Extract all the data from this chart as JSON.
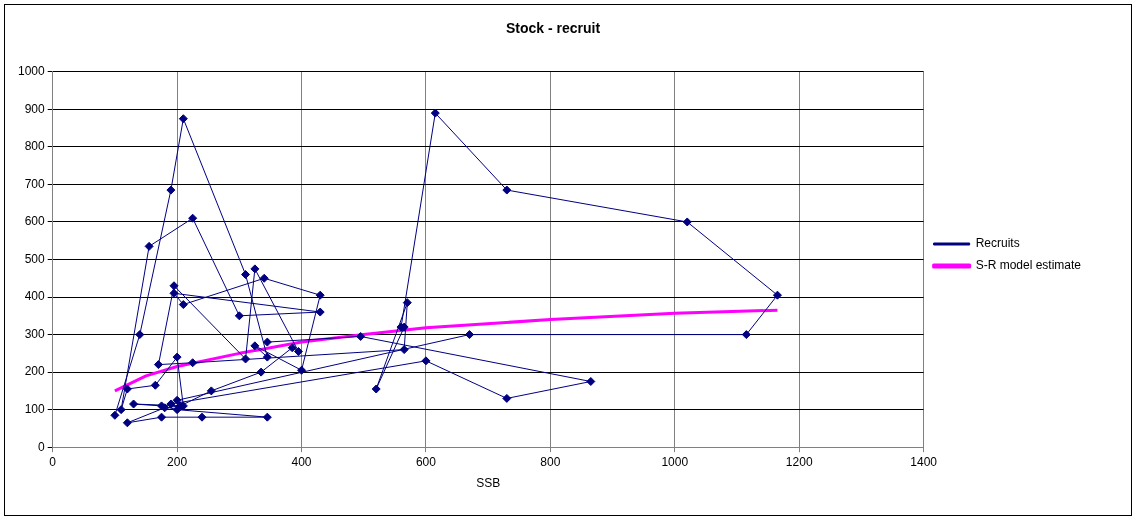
{
  "chart_data": {
    "type": "line",
    "title": "Stock - recruit",
    "xlabel": "SSB",
    "xlim": [
      0,
      1400
    ],
    "xticks": [
      0,
      200,
      400,
      600,
      800,
      1000,
      1200,
      1400
    ],
    "ylim": [
      0,
      1000
    ],
    "yticks": [
      0,
      100,
      200,
      300,
      400,
      500,
      600,
      700,
      800,
      900,
      1000
    ],
    "grid": true,
    "legend": "right",
    "series": [
      {
        "name": "Recruits",
        "color": "#000080",
        "marker": "diamond",
        "line_style": "solid",
        "x": [
          100,
          140,
          190,
          210,
          310,
          345,
          325,
          400,
          430,
          340,
          210,
          195,
          430,
          300,
          225,
          155,
          110,
          120,
          165,
          200,
          210,
          130,
          175,
          200,
          345,
          240,
          175,
          120,
          180,
          205,
          255,
          335,
          385,
          395,
          325,
          310,
          195,
          170,
          225,
          565,
          570,
          520,
          565,
          560,
          615,
          730,
          1020,
          1165,
          1115,
          670,
          200,
          190,
          600,
          730,
          865,
          495,
          345
        ],
        "values": [
          85,
          300,
          685,
          875,
          460,
          240,
          270,
          205,
          405,
          450,
          380,
          410,
          360,
          350,
          610,
          535,
          100,
          155,
          165,
          240,
          110,
          115,
          110,
          100,
          80,
          80,
          80,
          65,
          105,
          110,
          150,
          200,
          265,
          255,
          475,
          235,
          430,
          220,
          225,
          260,
          385,
          155,
          320,
          320,
          890,
          685,
          600,
          405,
          300,
          300,
          125,
          115,
          230,
          130,
          175,
          295,
          280
        ]
      },
      {
        "name": "S-R model estimate",
        "color": "#ff00ff",
        "marker": "none",
        "line_style": "solid",
        "x": [
          100,
          150,
          200,
          300,
          400,
          500,
          600,
          800,
          1000,
          1165
        ],
        "values": [
          150,
          190,
          215,
          250,
          280,
          300,
          318,
          340,
          357,
          365
        ]
      }
    ]
  }
}
